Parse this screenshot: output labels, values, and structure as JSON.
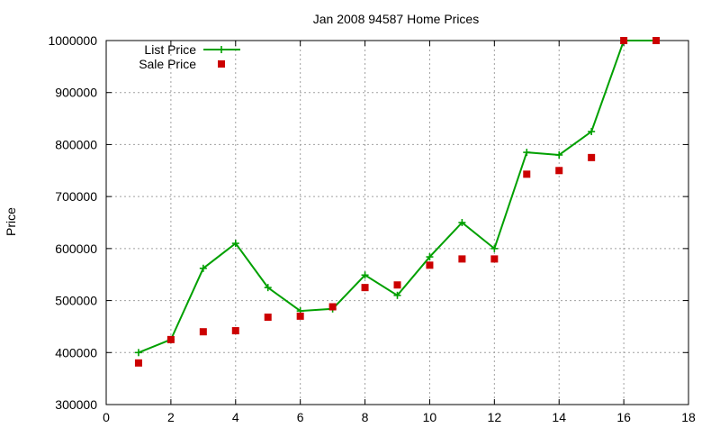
{
  "chart_data": {
    "type": "line",
    "title": "Jan 2008 94587 Home Prices",
    "xlabel": "",
    "ylabel": "Price",
    "xlim": [
      0,
      18
    ],
    "ylim": [
      300000,
      1000000
    ],
    "x_ticks": [
      0,
      2,
      4,
      6,
      8,
      10,
      12,
      14,
      16,
      18
    ],
    "y_ticks": [
      300000,
      400000,
      500000,
      600000,
      700000,
      800000,
      900000,
      1000000
    ],
    "x_tick_labels": [
      "0",
      "2",
      "4",
      "6",
      "8",
      "10",
      "12",
      "14",
      "16",
      "18"
    ],
    "y_tick_labels": [
      "300000",
      "400000",
      "500000",
      "600000",
      "700000",
      "800000",
      "900000",
      "1000000"
    ],
    "grid": true,
    "legend_position": "top-left",
    "series": [
      {
        "name": "List Price",
        "style": "line-with-plus-markers",
        "color": "#00a000",
        "x": [
          1,
          2,
          3,
          4,
          5,
          6,
          7,
          8,
          9,
          10,
          11,
          12,
          13,
          14,
          15,
          16,
          17
        ],
        "y": [
          400000,
          425000,
          562000,
          610000,
          525000,
          480000,
          484000,
          549000,
          510000,
          584000,
          650000,
          600000,
          785000,
          780000,
          825000,
          1000000,
          1000000
        ]
      },
      {
        "name": "Sale Price",
        "style": "square-markers",
        "color": "#cc0000",
        "x": [
          1,
          2,
          3,
          4,
          5,
          6,
          7,
          8,
          9,
          10,
          11,
          12,
          13,
          14,
          15,
          16,
          17
        ],
        "y": [
          380000,
          425000,
          440000,
          442000,
          468000,
          470000,
          488000,
          525000,
          530000,
          568000,
          580000,
          580000,
          743000,
          750000,
          775000,
          1000000,
          1000000
        ]
      }
    ]
  }
}
